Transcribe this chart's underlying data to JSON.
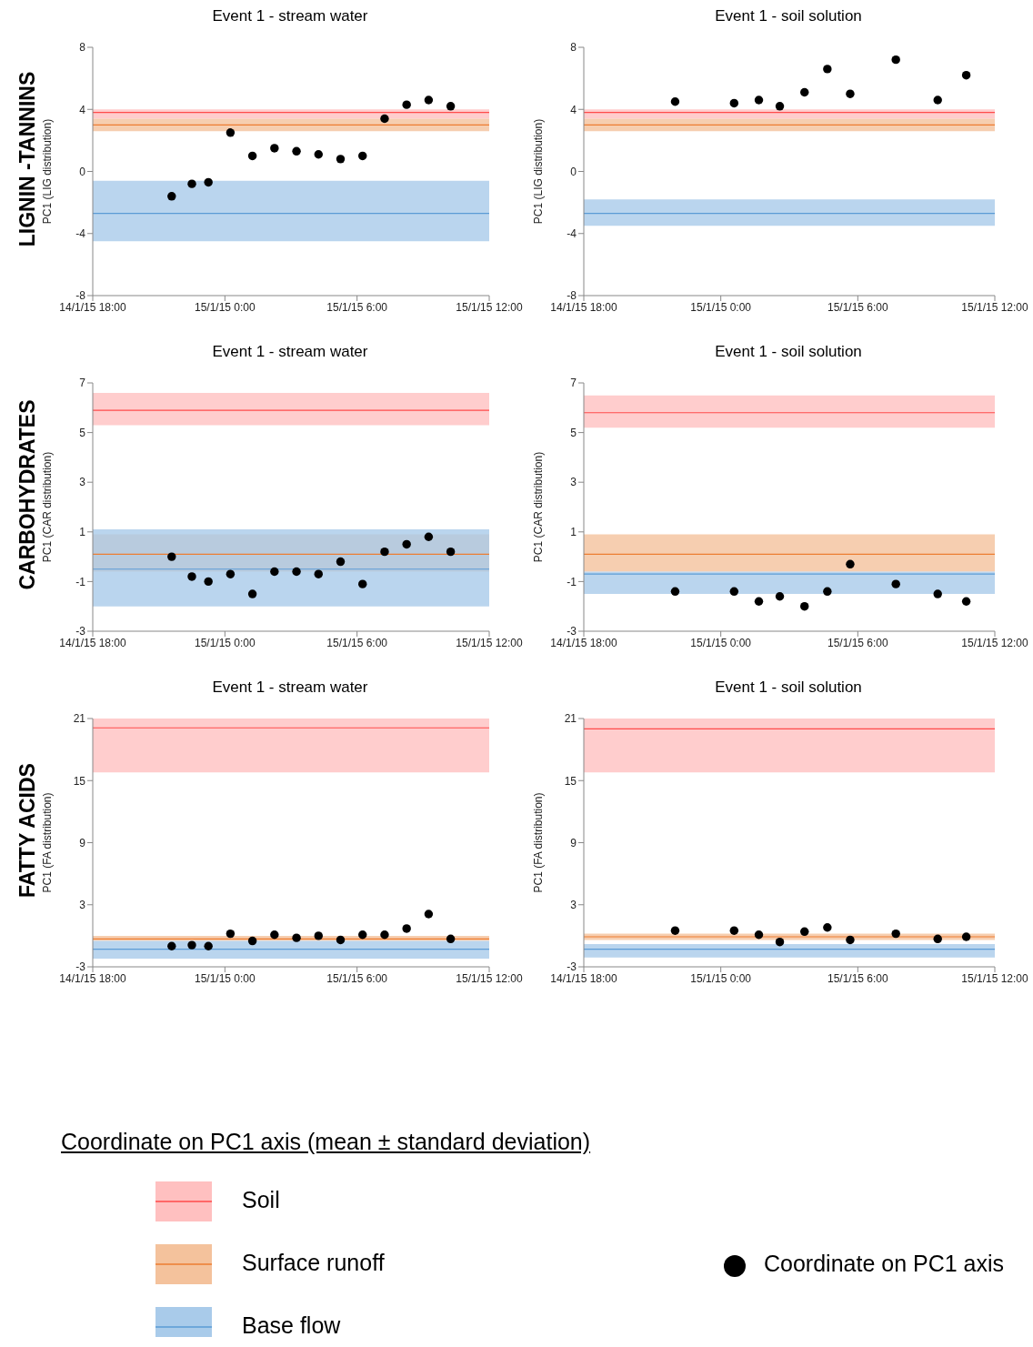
{
  "chart_data": [
    {
      "type": "scatter",
      "title": "Event 1 - stream water",
      "ylabel": "PC1 (LIG distribution)",
      "annotations": [
        "LIGNIN -TANNINS"
      ],
      "color": "#000000",
      "marker": "circle",
      "x": [
        "--01-14T21:35",
        "--01-14T22:30",
        "--01-14T23:15",
        "--01-15T00:15",
        "--01-15T01:15",
        "--01-15T02:15",
        "--01-15T03:15",
        "--01-15T04:15",
        "--01-15T05:15",
        "--01-15T06:15",
        "--01-15T07:15",
        "--01-15T08:15",
        "--01-15T09:15",
        "--01-15T10:15"
      ],
      "values": [
        -1.6,
        -0.8,
        -0.7,
        2.5,
        1.0,
        1.5,
        1.3,
        1.1,
        0.8,
        1.0,
        3.4,
        4.3,
        4.6,
        4.2
      ],
      "xlim": [
        "--01-14T18:00",
        "--01-15T12:00"
      ],
      "xticks": [
        {
          "value": "--01-14T18:00",
          "label": "14/1/15 18:00"
        },
        {
          "value": "--01-15T00:00",
          "label": "15/1/15 0:00"
        },
        {
          "value": "--01-15T06:00",
          "label": "15/1/15 6:00"
        },
        {
          "value": "--01-15T12:00",
          "label": "15/1/15 12:00"
        }
      ],
      "ylim": [
        -8,
        8
      ],
      "yticks": [
        -8,
        -4,
        0,
        4,
        8
      ],
      "bands": [
        {
          "axis": "y",
          "from": 3.4,
          "to": 4.0,
          "color": "#ffc0c0"
        },
        {
          "axis": "y",
          "from": 2.6,
          "to": 3.4,
          "color": "#f4c29c"
        },
        {
          "axis": "y",
          "from": -4.5,
          "to": -0.6,
          "color": "#a9cbea"
        }
      ],
      "ref_lines": [
        {
          "axis": "y",
          "value": 3.8,
          "color": "#ff4b4b"
        },
        {
          "axis": "y",
          "value": 3.0,
          "color": "#ed7d31"
        },
        {
          "axis": "y",
          "value": -2.7,
          "color": "#5b9bd5"
        }
      ]
    },
    {
      "type": "scatter",
      "title": "Event 1 - soil solution",
      "ylabel": "PC1 (LIG distribution)",
      "color": "#000000",
      "marker": "circle",
      "x": [
        "--01-14T22:00",
        "--01-15T00:35",
        "--01-15T01:40",
        "--01-15T02:35",
        "--01-15T03:40",
        "--01-15T04:40",
        "--01-15T05:40",
        "--01-15T07:40",
        "--01-15T09:30",
        "--01-15T10:45"
      ],
      "values": [
        4.5,
        4.4,
        4.6,
        4.2,
        5.1,
        6.6,
        5.0,
        7.2,
        4.6,
        6.2
      ],
      "xlim": [
        "--01-14T18:00",
        "--01-15T12:00"
      ],
      "xticks": [
        {
          "value": "--01-14T18:00",
          "label": "14/1/15 18:00"
        },
        {
          "value": "--01-15T00:00",
          "label": "15/1/15 0:00"
        },
        {
          "value": "--01-15T06:00",
          "label": "15/1/15 6:00"
        },
        {
          "value": "--01-15T12:00",
          "label": "15/1/15 12:00"
        }
      ],
      "ylim": [
        -8,
        8
      ],
      "yticks": [
        -8,
        -4,
        0,
        4,
        8
      ],
      "bands": [
        {
          "axis": "y",
          "from": 3.4,
          "to": 4.0,
          "color": "#ffc0c0"
        },
        {
          "axis": "y",
          "from": 2.6,
          "to": 3.4,
          "color": "#f4c29c"
        },
        {
          "axis": "y",
          "from": -3.5,
          "to": -1.8,
          "color": "#a9cbea"
        }
      ],
      "ref_lines": [
        {
          "axis": "y",
          "value": 3.8,
          "color": "#ff4b4b"
        },
        {
          "axis": "y",
          "value": 3.0,
          "color": "#ed7d31"
        },
        {
          "axis": "y",
          "value": -2.7,
          "color": "#5b9bd5"
        }
      ]
    },
    {
      "type": "scatter",
      "title": "Event 1 - stream water",
      "ylabel": "PC1 (CAR distribution)",
      "annotations": [
        "CARBOHYDRATES"
      ],
      "color": "#000000",
      "marker": "circle",
      "x": [
        "--01-14T21:35",
        "--01-14T22:30",
        "--01-14T23:15",
        "--01-15T00:15",
        "--01-15T01:15",
        "--01-15T02:15",
        "--01-15T03:15",
        "--01-15T04:15",
        "--01-15T05:15",
        "--01-15T06:15",
        "--01-15T07:15",
        "--01-15T08:15",
        "--01-15T09:15",
        "--01-15T10:15"
      ],
      "values": [
        0.0,
        -0.8,
        -1.0,
        -0.7,
        -1.5,
        -0.6,
        -0.6,
        -0.7,
        -0.2,
        -1.1,
        0.2,
        0.5,
        0.8,
        0.2
      ],
      "xlim": [
        "--01-14T18:00",
        "--01-15T12:00"
      ],
      "xticks": [
        {
          "value": "--01-14T18:00",
          "label": "14/1/15 18:00"
        },
        {
          "value": "--01-15T00:00",
          "label": "15/1/15 0:00"
        },
        {
          "value": "--01-15T06:00",
          "label": "15/1/15 6:00"
        },
        {
          "value": "--01-15T12:00",
          "label": "15/1/15 12:00"
        }
      ],
      "ylim": [
        -3,
        7
      ],
      "yticks": [
        -3,
        -1,
        1,
        3,
        5,
        7
      ],
      "bands": [
        {
          "axis": "y",
          "from": 5.3,
          "to": 6.6,
          "color": "#ffc0c0"
        },
        {
          "axis": "y",
          "from": -0.6,
          "to": 0.9,
          "color": "#f4c29c"
        },
        {
          "axis": "y",
          "from": -2.0,
          "to": 1.1,
          "color": "#a9cbea"
        }
      ],
      "ref_lines": [
        {
          "axis": "y",
          "value": 5.9,
          "color": "#ff4b4b"
        },
        {
          "axis": "y",
          "value": 0.1,
          "color": "#ed7d31"
        },
        {
          "axis": "y",
          "value": -0.5,
          "color": "#5b9bd5"
        }
      ]
    },
    {
      "type": "scatter",
      "title": "Event 1 - soil solution",
      "ylabel": "PC1 (CAR distribution)",
      "color": "#000000",
      "marker": "circle",
      "x": [
        "--01-14T22:00",
        "--01-15T00:35",
        "--01-15T01:40",
        "--01-15T02:35",
        "--01-15T03:40",
        "--01-15T04:40",
        "--01-15T05:40",
        "--01-15T07:40",
        "--01-15T09:30",
        "--01-15T10:45"
      ],
      "values": [
        -1.4,
        -1.4,
        -1.8,
        -1.6,
        -2.0,
        -1.4,
        -0.3,
        -1.1,
        -1.5,
        -1.8
      ],
      "xlim": [
        "--01-14T18:00",
        "--01-15T12:00"
      ],
      "xticks": [
        {
          "value": "--01-14T18:00",
          "label": "14/1/15 18:00"
        },
        {
          "value": "--01-15T00:00",
          "label": "15/1/15 0:00"
        },
        {
          "value": "--01-15T06:00",
          "label": "15/1/15 6:00"
        },
        {
          "value": "--01-15T12:00",
          "label": "15/1/15 12:00"
        }
      ],
      "ylim": [
        -3,
        7
      ],
      "yticks": [
        -3,
        -1,
        1,
        3,
        5,
        7
      ],
      "bands": [
        {
          "axis": "y",
          "from": 5.2,
          "to": 6.5,
          "color": "#ffc0c0"
        },
        {
          "axis": "y",
          "from": -0.6,
          "to": 0.9,
          "color": "#f4c29c"
        },
        {
          "axis": "y",
          "from": -1.5,
          "to": -0.6,
          "color": "#a9cbea"
        }
      ],
      "ref_lines": [
        {
          "axis": "y",
          "value": 5.8,
          "color": "#ff4b4b"
        },
        {
          "axis": "y",
          "value": 0.1,
          "color": "#ed7d31"
        },
        {
          "axis": "y",
          "value": -0.7,
          "color": "#5b9bd5"
        }
      ]
    },
    {
      "type": "scatter",
      "title": "Event 1 - stream water",
      "ylabel": "PC1 (FA distribution)",
      "annotations": [
        "FATTY ACIDS"
      ],
      "color": "#000000",
      "marker": "circle",
      "x": [
        "--01-14T21:35",
        "--01-14T22:30",
        "--01-14T23:15",
        "--01-15T00:15",
        "--01-15T01:15",
        "--01-15T02:15",
        "--01-15T03:15",
        "--01-15T04:15",
        "--01-15T05:15",
        "--01-15T06:15",
        "--01-15T07:15",
        "--01-15T08:15",
        "--01-15T09:15",
        "--01-15T10:15"
      ],
      "values": [
        -1.0,
        -0.9,
        -1.0,
        0.2,
        -0.5,
        0.1,
        -0.2,
        0.0,
        -0.4,
        0.1,
        0.1,
        0.7,
        2.1,
        -0.3
      ],
      "xlim": [
        "--01-14T18:00",
        "--01-15T12:00"
      ],
      "xticks": [
        {
          "value": "--01-14T18:00",
          "label": "14/1/15 18:00"
        },
        {
          "value": "--01-15T00:00",
          "label": "15/1/15 0:00"
        },
        {
          "value": "--01-15T06:00",
          "label": "15/1/15 6:00"
        },
        {
          "value": "--01-15T12:00",
          "label": "15/1/15 12:00"
        }
      ],
      "ylim": [
        -3,
        21
      ],
      "yticks": [
        -3,
        3,
        9,
        15,
        21
      ],
      "bands": [
        {
          "axis": "y",
          "from": 15.8,
          "to": 21,
          "color": "#ffc0c0"
        },
        {
          "axis": "y",
          "from": -0.5,
          "to": 0.0,
          "color": "#f4c29c"
        },
        {
          "axis": "y",
          "from": -2.2,
          "to": -0.5,
          "color": "#a9cbea"
        }
      ],
      "ref_lines": [
        {
          "axis": "y",
          "value": 20.1,
          "color": "#ff4b4b"
        },
        {
          "axis": "y",
          "value": -0.3,
          "color": "#ed7d31"
        },
        {
          "axis": "y",
          "value": -1.3,
          "color": "#5b9bd5"
        }
      ]
    },
    {
      "type": "scatter",
      "title": "Event 1 - soil solution",
      "ylabel": "PC1 (FA distribution)",
      "color": "#000000",
      "marker": "circle",
      "x": [
        "--01-14T22:00",
        "--01-15T00:35",
        "--01-15T01:40",
        "--01-15T02:35",
        "--01-15T03:40",
        "--01-15T04:40",
        "--01-15T05:40",
        "--01-15T07:40",
        "--01-15T09:30",
        "--01-15T10:45"
      ],
      "values": [
        0.5,
        0.5,
        0.1,
        -0.6,
        0.4,
        0.8,
        -0.4,
        0.2,
        -0.3,
        -0.1
      ],
      "xlim": [
        "--01-14T18:00",
        "--01-15T12:00"
      ],
      "xticks": [
        {
          "value": "--01-14T18:00",
          "label": "14/1/15 18:00"
        },
        {
          "value": "--01-15T00:00",
          "label": "15/1/15 0:00"
        },
        {
          "value": "--01-15T06:00",
          "label": "15/1/15 6:00"
        },
        {
          "value": "--01-15T12:00",
          "label": "15/1/15 12:00"
        }
      ],
      "ylim": [
        -3,
        21
      ],
      "yticks": [
        -3,
        3,
        9,
        15,
        21
      ],
      "bands": [
        {
          "axis": "y",
          "from": 15.8,
          "to": 21,
          "color": "#ffc0c0"
        },
        {
          "axis": "y",
          "from": -0.4,
          "to": 0.2,
          "color": "#f4c29c"
        },
        {
          "axis": "y",
          "from": -2.1,
          "to": -0.8,
          "color": "#a9cbea"
        }
      ],
      "ref_lines": [
        {
          "axis": "y",
          "value": 20.0,
          "color": "#ff4b4b"
        },
        {
          "axis": "y",
          "value": -0.1,
          "color": "#ed7d31"
        },
        {
          "axis": "y",
          "value": -1.3,
          "color": "#5b9bd5"
        }
      ]
    },
    {
      "type": "other",
      "legend_title": "Coordinate on PC1 axis (mean ± standard deviation)",
      "categories": [
        "Soil",
        "Surface runoff",
        "Base flow",
        "Coordinate on PC1 axis"
      ],
      "colors": [
        "#ffc0c0",
        "#f4c29c",
        "#a9cbea",
        "#000000"
      ]
    }
  ]
}
